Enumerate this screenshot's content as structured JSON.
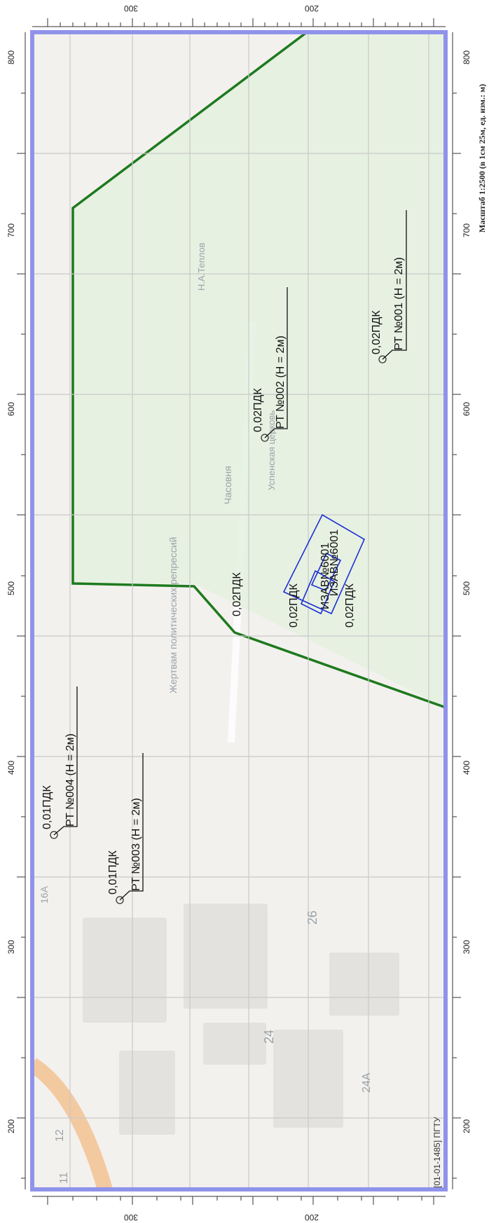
{
  "scale_note": "Масштаб 1:2500 (в 1см 25м, ед. изм.: м)",
  "footer": "[01-01-1485] ПГТУ",
  "colors": {
    "frame": "#8f93ea",
    "zone_fill": "#e3f1df",
    "zone_line": "#1e7a1e",
    "source": "#1f2fd6",
    "grid": "#c9c9c9"
  },
  "axes": {
    "horizontal_ticks": [
      "200",
      "300"
    ],
    "vertical_ticks": [
      "200",
      "300",
      "400",
      "500",
      "600",
      "700",
      "800"
    ]
  },
  "basemap_labels": {
    "memorial": "Жертвам политических репрессий",
    "chapel": "Часовня",
    "church": "Успенская церковь",
    "monument": "Н.А.Теплов",
    "houses": [
      "26",
      "24",
      "24А",
      "12",
      "11",
      "16А"
    ]
  },
  "sources_label": "ИЗАВ№6001",
  "points": [
    {
      "name": "РТ №001 (H = 2м)",
      "value": "0,02ПДК"
    },
    {
      "name": "РТ №002 (H = 2м)",
      "value": "0,02ПДК"
    },
    {
      "name": "РТ №003 (H = 2м)",
      "value": "0,01ПДК"
    },
    {
      "name": "РТ №004 (H = 2м)",
      "value": "0,01ПДК"
    }
  ],
  "source_values": [
    "0,02ПДК",
    "0,02ПДК",
    "0,02ПДК"
  ]
}
